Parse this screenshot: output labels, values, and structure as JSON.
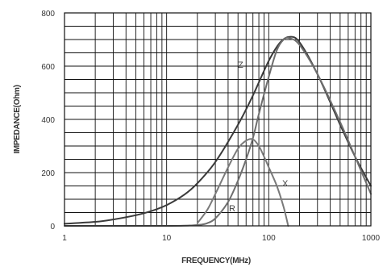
{
  "chart_data": {
    "type": "line",
    "title": "",
    "xlabel": "FREQUENCY(MHz)",
    "ylabel": "IMPEDANCE(Ohm)",
    "xscale": "log",
    "xlim": [
      1,
      1000
    ],
    "ylim": [
      0,
      800
    ],
    "x_ticks": [
      1,
      10,
      100,
      1000
    ],
    "x_tick_labels": [
      "1",
      "10",
      "100",
      "1000"
    ],
    "y_ticks": [
      0,
      200,
      400,
      600,
      800
    ],
    "y_tick_labels": [
      "0",
      "200",
      "400",
      "600",
      "800"
    ],
    "grid": true,
    "series": [
      {
        "name": "Z",
        "color": "#3a3a3a",
        "x": [
          1,
          2,
          3,
          5,
          7,
          10,
          15,
          20,
          30,
          50,
          70,
          100,
          130,
          160,
          200,
          300,
          500,
          700,
          1000
        ],
        "y": [
          8,
          15,
          24,
          40,
          55,
          78,
          118,
          160,
          240,
          380,
          490,
          620,
          690,
          710,
          690,
          570,
          380,
          260,
          150
        ]
      },
      {
        "name": "R",
        "color": "#6e6e6e",
        "x": [
          1,
          10,
          18,
          22,
          25,
          30,
          40,
          50,
          60,
          70,
          80,
          100,
          120,
          140,
          160,
          200,
          300,
          500,
          700,
          1000
        ],
        "y": [
          0,
          0,
          2,
          5,
          10,
          28,
          90,
          170,
          250,
          330,
          420,
          560,
          660,
          700,
          705,
          680,
          570,
          390,
          260,
          120
        ]
      },
      {
        "name": "X",
        "color": "#7a7a7a",
        "x": [
          20,
          25,
          30,
          40,
          50,
          60,
          70,
          80,
          90,
          100,
          120,
          140,
          155
        ],
        "y": [
          10,
          60,
          120,
          220,
          290,
          320,
          325,
          300,
          260,
          220,
          150,
          70,
          0
        ]
      }
    ]
  }
}
